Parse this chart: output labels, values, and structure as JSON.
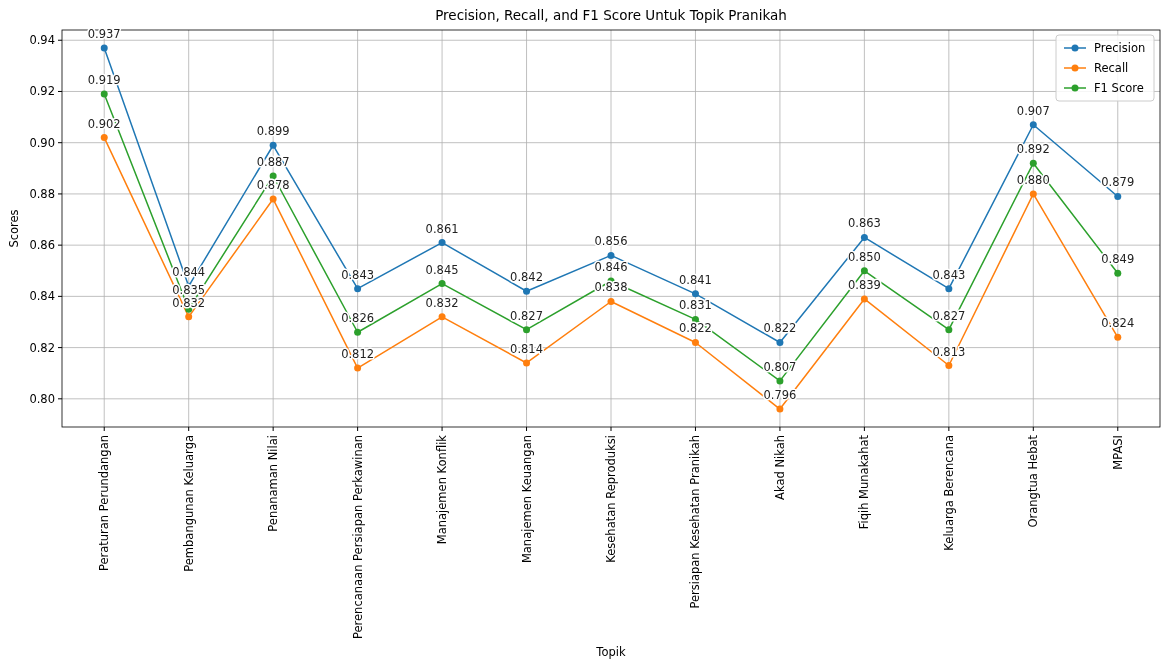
{
  "chart_data": {
    "type": "line",
    "title": "Precision, Recall, and F1 Score Untuk Topik Pranikah",
    "xlabel": "Topik",
    "ylabel": "Scores",
    "categories": [
      "Peraturan Perundangan",
      "Pembangunan Keluarga",
      "Penanaman Nilai",
      "Perencanaan Persiapan Perkawinan",
      "Manajemen Konflik",
      "Manajemen Keuangan",
      "Kesehatan Reproduksi",
      "Persiapan Kesehatan Pranikah",
      "Akad Nikah",
      "Fiqih Munakahat",
      "Keluarga Berencana",
      "Orangtua Hebat",
      "MPASI"
    ],
    "series": [
      {
        "name": "Precision",
        "color": "#1f77b4",
        "values": [
          0.937,
          0.844,
          0.899,
          0.843,
          0.861,
          0.842,
          0.856,
          0.841,
          0.822,
          0.863,
          0.843,
          0.907,
          0.879
        ],
        "value_labels": [
          "0.937",
          "0.844",
          "0.899",
          "0.843",
          "0.861",
          "0.842",
          "0.856",
          "0.841",
          "0.822",
          "0.863",
          "0.843",
          "0.907",
          "0.879"
        ]
      },
      {
        "name": "Recall",
        "color": "#ff7f0e",
        "values": [
          0.902,
          0.832,
          0.878,
          0.812,
          0.832,
          0.814,
          0.838,
          0.822,
          0.796,
          0.839,
          0.813,
          0.88,
          0.824
        ],
        "value_labels": [
          "0.902",
          "0.832",
          "0.878",
          "0.812",
          "0.832",
          "0.814",
          "0.838",
          "0.822",
          "0.796",
          "0.839",
          "0.813",
          "0.880",
          "0.824"
        ]
      },
      {
        "name": "F1 Score",
        "color": "#2ca02c",
        "values": [
          0.919,
          0.835,
          0.887,
          0.826,
          0.845,
          0.827,
          0.846,
          0.831,
          0.807,
          0.85,
          0.827,
          0.892,
          0.849
        ],
        "value_labels": [
          "0.919",
          "0.835",
          "0.887",
          "0.826",
          "0.845",
          "0.827",
          "0.846",
          "0.831",
          "0.807",
          "0.850",
          "0.827",
          "0.892",
          "0.849"
        ]
      }
    ],
    "ylim": [
      0.789,
      0.944
    ],
    "yticks": [
      {
        "value": 0.8,
        "label": "0.80"
      },
      {
        "value": 0.82,
        "label": "0.82"
      },
      {
        "value": 0.84,
        "label": "0.84"
      },
      {
        "value": 0.86,
        "label": "0.86"
      },
      {
        "value": 0.88,
        "label": "0.88"
      },
      {
        "value": 0.9,
        "label": "0.90"
      },
      {
        "value": 0.92,
        "label": "0.92"
      },
      {
        "value": 0.94,
        "label": "0.94"
      }
    ],
    "grid": true,
    "legend": "top right",
    "marker": "circle",
    "line_style": "solid"
  }
}
